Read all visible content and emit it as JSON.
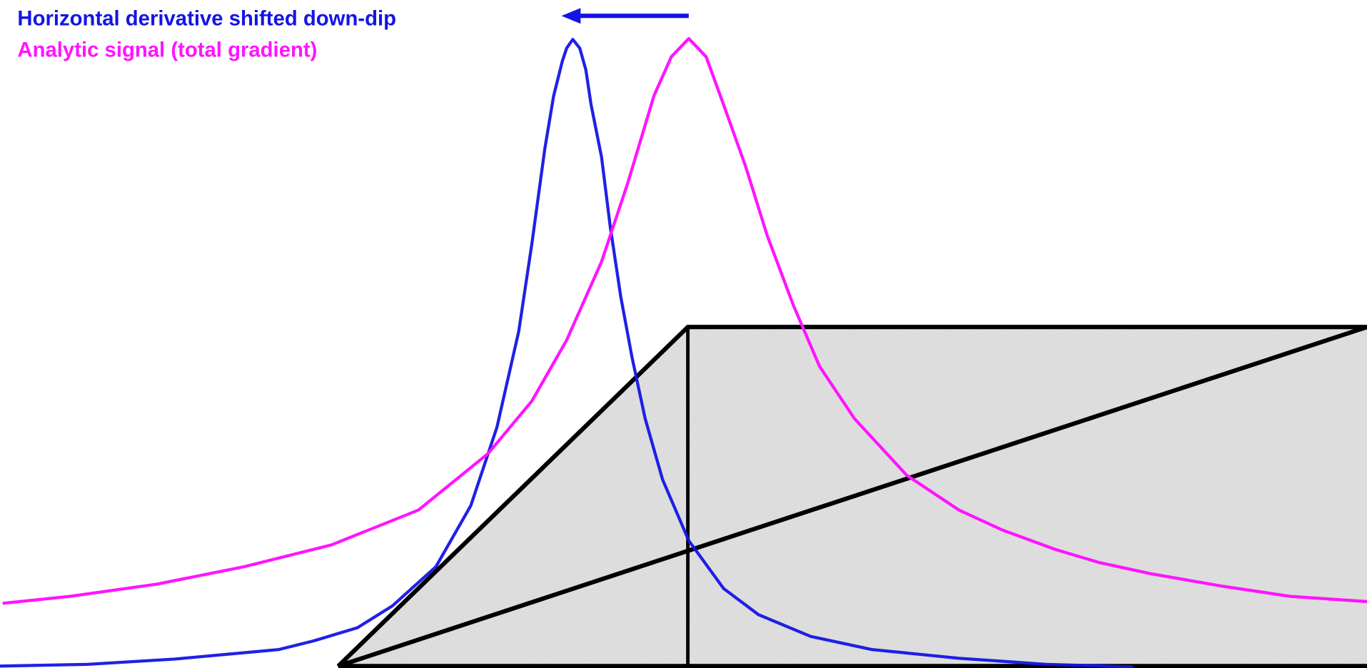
{
  "legend": [
    {
      "text": "Horizontal derivative shifted down-dip",
      "color": "#1414e6"
    },
    {
      "text": "Analytic signal (total gradient)",
      "color": "#ff14ff"
    }
  ]
}
